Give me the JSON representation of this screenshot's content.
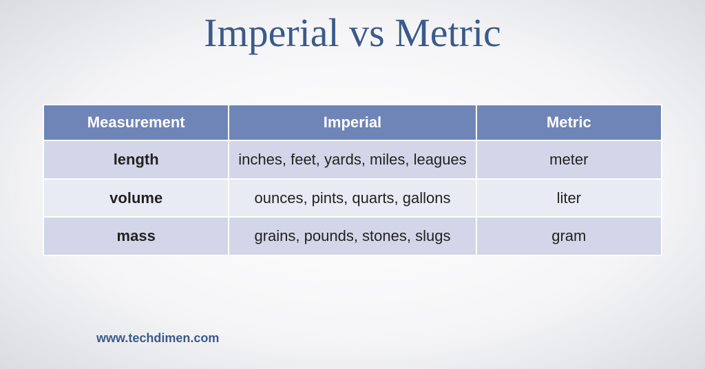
{
  "title": "Imperial vs Metric",
  "title_color": "#3b5a8a",
  "table": {
    "header_bg": "#6f85b7",
    "header_text_color": "#ffffff",
    "row_alt_bg_1": "#d2d6e8",
    "row_alt_bg_2": "#e9ebf4",
    "cell_text_color": "#222222",
    "border_color": "#ffffff",
    "columns": [
      "Measurement",
      "Imperial",
      "Metric"
    ],
    "col_widths_percent": [
      30,
      40,
      30
    ],
    "rows": [
      {
        "measurement": "length",
        "imperial": "inches, feet, yards, miles, leagues",
        "metric": "meter"
      },
      {
        "measurement": "volume",
        "imperial": "ounces, pints, quarts, gallons",
        "metric": "liter"
      },
      {
        "measurement": "mass",
        "imperial": "grains, pounds, stones, slugs",
        "metric": "gram"
      }
    ]
  },
  "footer": {
    "url": "www.techdimen.com",
    "color": "#3b5a8a"
  }
}
